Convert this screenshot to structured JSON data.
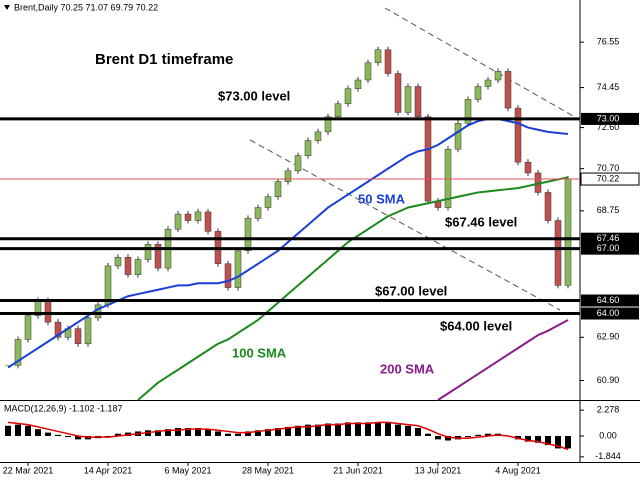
{
  "chart_data": {
    "type": "candlestick",
    "header": "Brent,Daily 70.25 71.07 69.79 70.22",
    "title": "Brent D1 timeframe",
    "categories": [
      null,
      null,
      "22 Mar 2021",
      null,
      null,
      null,
      null,
      null,
      null,
      null,
      "14 Apr 2021",
      null,
      null,
      null,
      null,
      null,
      null,
      null,
      "6 May 2021",
      null,
      null,
      null,
      null,
      null,
      null,
      null,
      "28 May 2021",
      null,
      null,
      null,
      null,
      null,
      null,
      null,
      null,
      "21 Jun 2021",
      null,
      null,
      null,
      null,
      null,
      null,
      null,
      "13 Jul 2021",
      null,
      null,
      null,
      null,
      null,
      null,
      null,
      "4 Aug 2021",
      null,
      null,
      null,
      null,
      null
    ],
    "close": [
      61.6,
      62.8,
      63.9,
      64.6,
      63.6,
      62.9,
      63.3,
      62.6,
      63.8,
      64.4,
      66.2,
      66.6,
      65.8,
      66.5,
      67.2,
      66.1,
      67.9,
      68.6,
      68.3,
      68.7,
      67.8,
      66.3,
      65.2,
      66.9,
      68.4,
      68.9,
      69.4,
      70.1,
      70.6,
      71.3,
      72.0,
      72.4,
      73.1,
      73.7,
      74.4,
      74.8,
      75.6,
      76.2,
      75.1,
      73.3,
      74.5,
      73.1,
      69.2,
      68.9,
      71.6,
      72.8,
      73.9,
      74.5,
      74.8,
      75.2,
      73.5,
      71.0,
      70.5,
      69.6,
      68.3,
      65.3,
      70.22
    ],
    "up_color": "#8cb85c",
    "down_color": "#c0504d",
    "series": [
      {
        "name": "50 SMA",
        "color": "#1a3fd6",
        "values": [
          61.5,
          61.8,
          62.1,
          62.4,
          62.7,
          63.0,
          63.3,
          63.6,
          63.9,
          64.2,
          64.4,
          64.6,
          64.8,
          64.9,
          65.0,
          65.1,
          65.2,
          65.3,
          65.3,
          65.4,
          65.4,
          65.4,
          65.5,
          65.7,
          66.0,
          66.3,
          66.6,
          66.9,
          67.3,
          67.7,
          68.1,
          68.5,
          68.9,
          69.2,
          69.5,
          69.8,
          70.1,
          70.4,
          70.7,
          71.0,
          71.3,
          71.5,
          71.6,
          71.8,
          72.1,
          72.4,
          72.7,
          72.9,
          73.0,
          73.0,
          72.9,
          72.8,
          72.6,
          72.5,
          72.4,
          72.35,
          72.3
        ]
      },
      {
        "name": "100 SMA",
        "color": "#1a8a1a",
        "values": [
          null,
          null,
          null,
          null,
          null,
          null,
          null,
          null,
          null,
          null,
          null,
          null,
          null,
          60.0,
          60.4,
          60.8,
          61.1,
          61.4,
          61.7,
          62.0,
          62.3,
          62.6,
          62.8,
          63.1,
          63.4,
          63.7,
          64.1,
          64.5,
          64.9,
          65.3,
          65.7,
          66.1,
          66.5,
          66.9,
          67.3,
          67.6,
          67.9,
          68.2,
          68.5,
          68.7,
          68.9,
          69.0,
          69.1,
          69.2,
          69.3,
          69.4,
          69.5,
          69.6,
          69.65,
          69.7,
          69.75,
          69.8,
          69.9,
          70.0,
          70.1,
          70.2,
          70.3
        ]
      },
      {
        "name": "200 SMA",
        "color": "#8b1a8b",
        "values": [
          null,
          null,
          null,
          null,
          null,
          null,
          null,
          null,
          null,
          null,
          null,
          null,
          null,
          null,
          null,
          null,
          null,
          null,
          null,
          null,
          null,
          null,
          null,
          null,
          null,
          null,
          null,
          null,
          null,
          null,
          null,
          null,
          null,
          null,
          null,
          null,
          null,
          null,
          null,
          null,
          null,
          null,
          null,
          60.0,
          60.3,
          60.6,
          60.9,
          61.2,
          61.5,
          61.8,
          62.1,
          62.4,
          62.7,
          63.0,
          63.2,
          63.45,
          63.7
        ]
      }
    ],
    "ylim": [
      60,
      78.5
    ],
    "yticks": [
      76.55,
      74.45,
      {
        "value": 72.6,
        "label": "72.60"
      },
      {
        "value": 70.7,
        "label": "70.70"
      },
      68.75,
      {
        "value": 62.9,
        "label": "62.90"
      },
      {
        "value": 60.9,
        "label": "60.90"
      }
    ],
    "levels": [
      {
        "value": 73,
        "label": "73.00",
        "text": "$73.00 level"
      },
      {
        "value": 67.46,
        "label": "67.46",
        "text": "$67.46 level"
      },
      {
        "value": 67,
        "label": "67.00",
        "text": "$67.00 level"
      },
      {
        "value": 64.6,
        "label": "64.60"
      },
      {
        "value": 64,
        "label": "64.00",
        "text": "$64.00 level"
      }
    ],
    "current": {
      "value": 70.22,
      "label": "70.22",
      "color": "#e05050"
    },
    "macd": {
      "label": "MACD(12,26,9) -1.102 -1.187",
      "ylim": [
        -2.3,
        3.0
      ],
      "yticks": [
        2.278,
        {
          "value": 0,
          "label": "0.00"
        },
        -1.844
      ],
      "histogram": [
        0.9,
        1.0,
        0.9,
        0.6,
        0.3,
        0.1,
        -0.1,
        -0.3,
        -0.3,
        -0.2,
        0.0,
        0.2,
        0.3,
        0.4,
        0.5,
        0.5,
        0.6,
        0.7,
        0.7,
        0.7,
        0.6,
        0.4,
        0.2,
        0.2,
        0.4,
        0.5,
        0.6,
        0.7,
        0.8,
        0.9,
        1.0,
        1.0,
        1.1,
        1.1,
        1.2,
        1.2,
        1.2,
        1.2,
        1.2,
        1.0,
        0.9,
        0.7,
        0.2,
        -0.3,
        -0.4,
        -0.3,
        -0.1,
        0.1,
        0.2,
        0.2,
        0.0,
        -0.3,
        -0.5,
        -0.6,
        -0.8,
        -1.1,
        -1.102
      ],
      "signal": {
        "color": "#e00000",
        "values": [
          1.2,
          1.1,
          1.0,
          0.8,
          0.6,
          0.4,
          0.2,
          0.0,
          -0.1,
          -0.1,
          -0.1,
          0.0,
          0.1,
          0.2,
          0.3,
          0.4,
          0.5,
          0.5,
          0.6,
          0.6,
          0.6,
          0.5,
          0.4,
          0.3,
          0.3,
          0.4,
          0.5,
          0.6,
          0.7,
          0.8,
          0.8,
          0.9,
          1.0,
          1.0,
          1.1,
          1.1,
          1.1,
          1.2,
          1.2,
          1.1,
          1.0,
          0.9,
          0.6,
          0.2,
          -0.1,
          -0.2,
          -0.2,
          -0.1,
          0.0,
          0.1,
          0.0,
          -0.2,
          -0.4,
          -0.5,
          -0.7,
          -0.9,
          -1.187
        ]
      }
    }
  }
}
